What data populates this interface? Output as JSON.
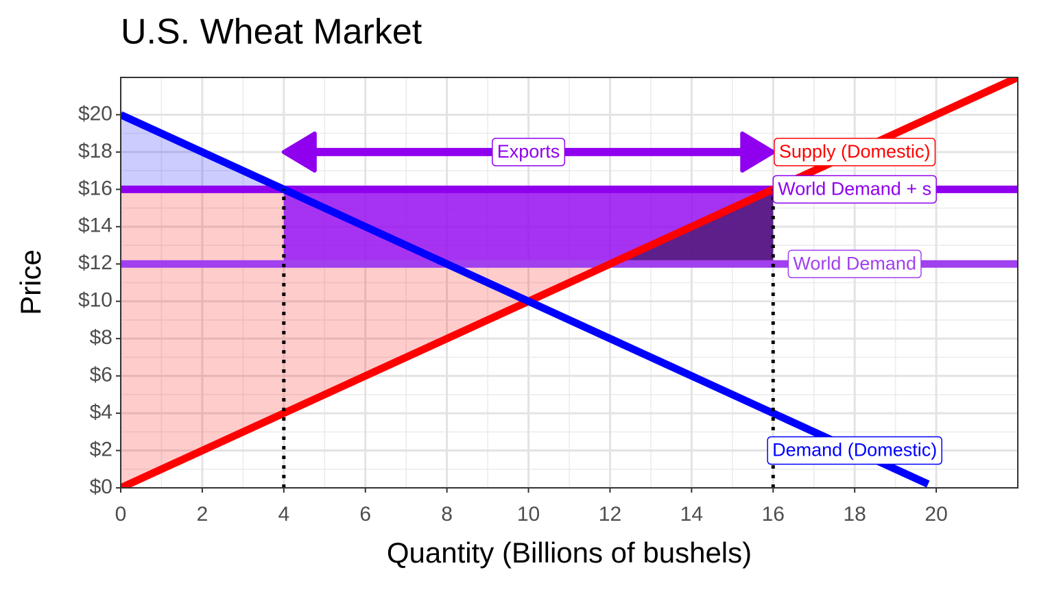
{
  "chart_data": {
    "type": "line",
    "title": "U.S. Wheat Market",
    "x_label": "Quantity (Billions of bushels)",
    "y_label": "Price",
    "xlim": [
      0,
      22
    ],
    "ylim": [
      0,
      22
    ],
    "xticks": [
      0,
      2,
      4,
      6,
      8,
      10,
      12,
      14,
      16,
      18,
      20
    ],
    "yticks": [
      {
        "value": 0,
        "label": "$0"
      },
      {
        "value": 2,
        "label": "$2"
      },
      {
        "value": 4,
        "label": "$4"
      },
      {
        "value": 6,
        "label": "$6"
      },
      {
        "value": 8,
        "label": "$8"
      },
      {
        "value": 10,
        "label": "$10"
      },
      {
        "value": 12,
        "label": "$12"
      },
      {
        "value": 14,
        "label": "$14"
      },
      {
        "value": 16,
        "label": "$16"
      },
      {
        "value": 18,
        "label": "$18"
      },
      {
        "value": 20,
        "label": "$20"
      }
    ],
    "grid": true,
    "areas": [
      {
        "color": "#0000ff33",
        "x": [
          0,
          4,
          0
        ],
        "y": [
          20,
          16,
          16
        ]
      },
      {
        "color": "#ff000033",
        "x": [
          0,
          0,
          4,
          4,
          12
        ],
        "y": [
          0,
          16,
          16,
          12,
          12
        ]
      },
      {
        "color": "#8f00eecc",
        "x": [
          4,
          16,
          16,
          4
        ],
        "y": [
          12,
          12,
          16,
          16
        ]
      },
      {
        "color": "#4b1a70cc",
        "x": [
          12,
          16,
          16
        ],
        "y": [
          12,
          16,
          12
        ]
      }
    ],
    "series": [
      {
        "name": "World Demand",
        "color": "#a040ee",
        "x": [
          0,
          22
        ],
        "values": [
          12,
          12
        ]
      },
      {
        "name": "World Demand + s",
        "color": "#8f00ee",
        "x": [
          0,
          22
        ],
        "values": [
          16,
          16
        ]
      },
      {
        "name": "Supply (Domestic)",
        "color": "#ff0000",
        "x": [
          0,
          22
        ],
        "values": [
          0,
          22
        ]
      },
      {
        "name": "Demand (Domestic)",
        "color": "#0000ff",
        "x": [
          0,
          19.8
        ],
        "values": [
          20,
          0.2
        ]
      }
    ],
    "vlines": [
      {
        "x": 4,
        "ymax": 16
      },
      {
        "x": 16,
        "ymax": 16
      }
    ],
    "arrow": {
      "text": "Exports",
      "x": [
        4,
        16
      ],
      "y": 18,
      "color": "#8f00ee"
    },
    "labels": [
      {
        "series": 2,
        "x": 18,
        "y": 18
      },
      {
        "series": 1,
        "x": 18,
        "y": 16
      },
      {
        "series": 0,
        "x": 18,
        "y": 12
      },
      {
        "series": 3,
        "x": 18,
        "y": 2
      }
    ]
  }
}
